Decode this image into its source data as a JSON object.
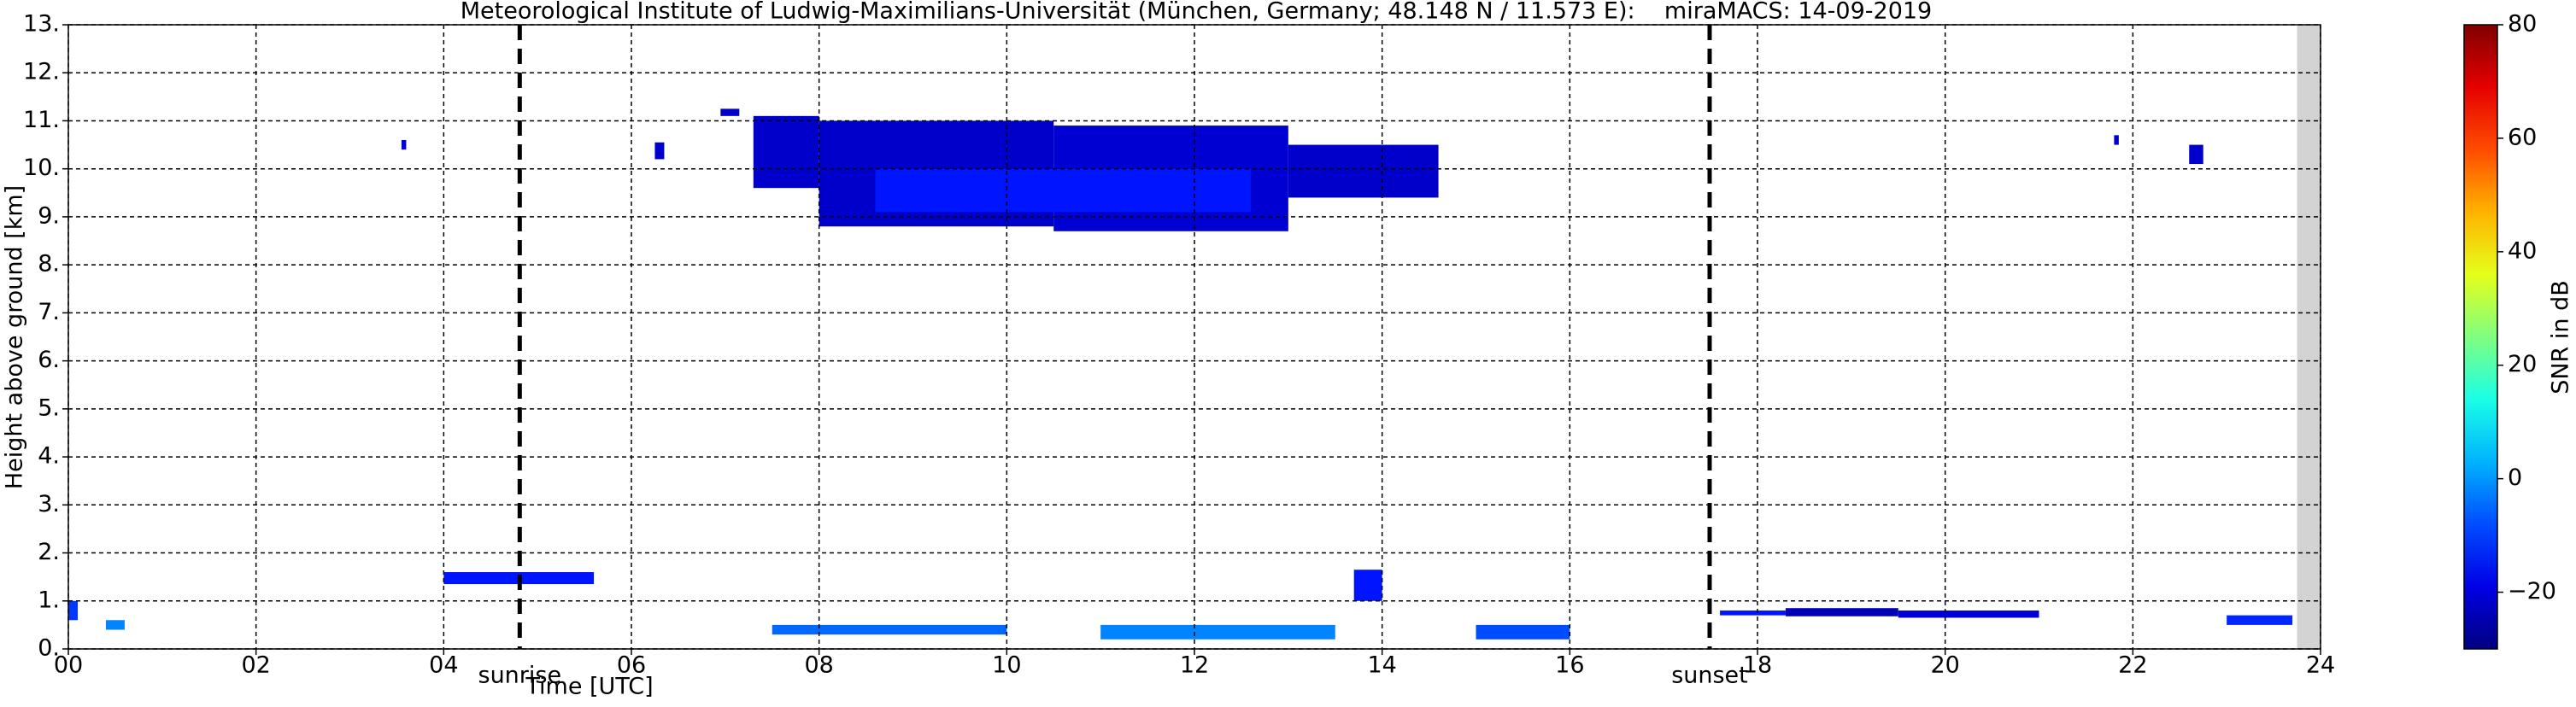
{
  "chart_data": {
    "type": "heatmap",
    "title": "Meteorological Institute of Ludwig-Maximilians-Universität (München, Germany; 48.148 N / 11.573 E):    miraMACS: 14-09-2019",
    "x_label": "Time [UTC]",
    "y_label": "Height above ground [km]",
    "xlim": [
      0,
      24
    ],
    "ylim": [
      0,
      13
    ],
    "xticks": [
      {
        "value": 0,
        "label": "00"
      },
      {
        "value": 2,
        "label": "02"
      },
      {
        "value": 4,
        "label": "04"
      },
      {
        "value": 6,
        "label": "06"
      },
      {
        "value": 8,
        "label": "08"
      },
      {
        "value": 10,
        "label": "10"
      },
      {
        "value": 12,
        "label": "12"
      },
      {
        "value": 14,
        "label": "14"
      },
      {
        "value": 16,
        "label": "16"
      },
      {
        "value": 18,
        "label": "18"
      },
      {
        "value": 20,
        "label": "20"
      },
      {
        "value": 22,
        "label": "22"
      },
      {
        "value": 24,
        "label": "24"
      }
    ],
    "yticks": [
      {
        "value": 0,
        "label": "0."
      },
      {
        "value": 1,
        "label": "1."
      },
      {
        "value": 2,
        "label": "2."
      },
      {
        "value": 3,
        "label": "3."
      },
      {
        "value": 4,
        "label": "4."
      },
      {
        "value": 5,
        "label": "5."
      },
      {
        "value": 6,
        "label": "6."
      },
      {
        "value": 7,
        "label": "7."
      },
      {
        "value": 8,
        "label": "8."
      },
      {
        "value": 9,
        "label": "9."
      },
      {
        "value": 10,
        "label": "10."
      },
      {
        "value": 11,
        "label": "11."
      },
      {
        "value": 12,
        "label": "12."
      },
      {
        "value": 13,
        "label": "13."
      }
    ],
    "grid": true,
    "no_data_x": [
      23.75,
      24
    ],
    "annotations": [
      {
        "x": 4.81,
        "label": "sunrise"
      },
      {
        "x": 17.49,
        "label": "sunset"
      }
    ],
    "colorbar": {
      "label": "SNR in dB",
      "lim": [
        -30,
        80
      ],
      "ticks": [
        {
          "value": -20,
          "label": "−20"
        },
        0,
        20,
        40,
        60,
        80
      ]
    },
    "regions": [
      {
        "x": [
          7.3,
          8.0
        ],
        "y": [
          9.6,
          11.1
        ],
        "value": -22
      },
      {
        "x": [
          8.0,
          10.5
        ],
        "y": [
          8.8,
          11.0
        ],
        "value": -22
      },
      {
        "x": [
          10.5,
          13.0
        ],
        "y": [
          8.7,
          10.9
        ],
        "value": -21
      },
      {
        "x": [
          13.0,
          14.6
        ],
        "y": [
          9.4,
          10.5
        ],
        "value": -22
      },
      {
        "x": [
          8.6,
          12.6
        ],
        "y": [
          9.1,
          10.0
        ],
        "value": -14
      },
      {
        "x": [
          6.95,
          7.15
        ],
        "y": [
          11.1,
          11.25
        ],
        "value": -22
      },
      {
        "x": [
          3.55,
          3.6
        ],
        "y": [
          10.4,
          10.6
        ],
        "value": -20
      },
      {
        "x": [
          6.25,
          6.35
        ],
        "y": [
          10.2,
          10.55
        ],
        "value": -22
      },
      {
        "x": [
          21.8,
          21.85
        ],
        "y": [
          10.5,
          10.7
        ],
        "value": -22
      },
      {
        "x": [
          22.6,
          22.75
        ],
        "y": [
          10.1,
          10.5
        ],
        "value": -22
      },
      {
        "x": [
          4.0,
          5.6
        ],
        "y": [
          1.35,
          1.6
        ],
        "value": -14
      },
      {
        "x": [
          13.7,
          14.0
        ],
        "y": [
          1.0,
          1.65
        ],
        "value": -14
      },
      {
        "x": [
          18.3,
          19.5
        ],
        "y": [
          0.68,
          0.85
        ],
        "value": -24
      },
      {
        "x": [
          17.6,
          18.3
        ],
        "y": [
          0.7,
          0.8
        ],
        "value": -14
      },
      {
        "x": [
          19.5,
          21.0
        ],
        "y": [
          0.65,
          0.8
        ],
        "value": -20
      },
      {
        "x": [
          0.0,
          0.1
        ],
        "y": [
          0.6,
          1.0
        ],
        "value": -10
      },
      {
        "x": [
          0.4,
          0.6
        ],
        "y": [
          0.4,
          0.6
        ],
        "value": -2
      },
      {
        "x": [
          7.5,
          10.0
        ],
        "y": [
          0.3,
          0.5
        ],
        "value": -5
      },
      {
        "x": [
          11.0,
          13.5
        ],
        "y": [
          0.2,
          0.5
        ],
        "value": -2
      },
      {
        "x": [
          15.0,
          16.0
        ],
        "y": [
          0.2,
          0.5
        ],
        "value": -8
      },
      {
        "x": [
          23.0,
          23.7
        ],
        "y": [
          0.5,
          0.7
        ],
        "value": -12
      }
    ]
  }
}
